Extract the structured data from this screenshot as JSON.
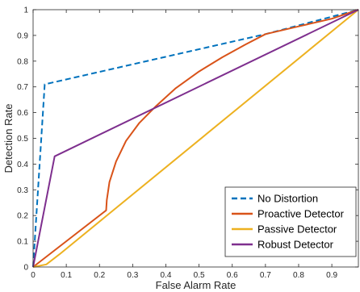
{
  "chart_data": {
    "type": "line",
    "xlabel": "False Alarm Rate",
    "ylabel": "Detection Rate",
    "xlim": [
      0,
      0.98
    ],
    "ylim": [
      0,
      1
    ],
    "xticks": [
      "0",
      "0.1",
      "0.2",
      "0.3",
      "0.4",
      "0.5",
      "0.6",
      "0.7",
      "0.8",
      "0.9"
    ],
    "yticks": [
      "0",
      "0.1",
      "0.2",
      "0.3",
      "0.4",
      "0.5",
      "0.6",
      "0.7",
      "0.8",
      "0.9",
      "1"
    ],
    "grid": false,
    "legend_position": "bottom-right",
    "series": [
      {
        "name": "No Distortion",
        "color": "#0072BD",
        "style": "dashed",
        "x": [
          0,
          0.035,
          0.7,
          1.0
        ],
        "y": [
          0,
          0.71,
          0.905,
          1.0
        ]
      },
      {
        "name": "Proactive Detector",
        "color": "#D95319",
        "style": "solid",
        "x": [
          0,
          0.22,
          0.222,
          0.23,
          0.25,
          0.28,
          0.32,
          0.37,
          0.43,
          0.5,
          0.57,
          0.64,
          0.7,
          0.8,
          0.9,
          1.0
        ],
        "y": [
          0,
          0.22,
          0.26,
          0.33,
          0.41,
          0.49,
          0.56,
          0.625,
          0.695,
          0.76,
          0.815,
          0.865,
          0.905,
          0.935,
          0.965,
          1.0
        ]
      },
      {
        "name": "Passive Detector",
        "color": "#EDB120",
        "style": "solid",
        "x": [
          0,
          0.04,
          0.08,
          1.0
        ],
        "y": [
          0,
          0.01,
          0.05,
          1.0
        ]
      },
      {
        "name": "Robust Detector",
        "color": "#7E2F8E",
        "style": "solid",
        "x": [
          0,
          0.065,
          1.0
        ],
        "y": [
          0,
          0.43,
          1.0
        ]
      }
    ]
  }
}
